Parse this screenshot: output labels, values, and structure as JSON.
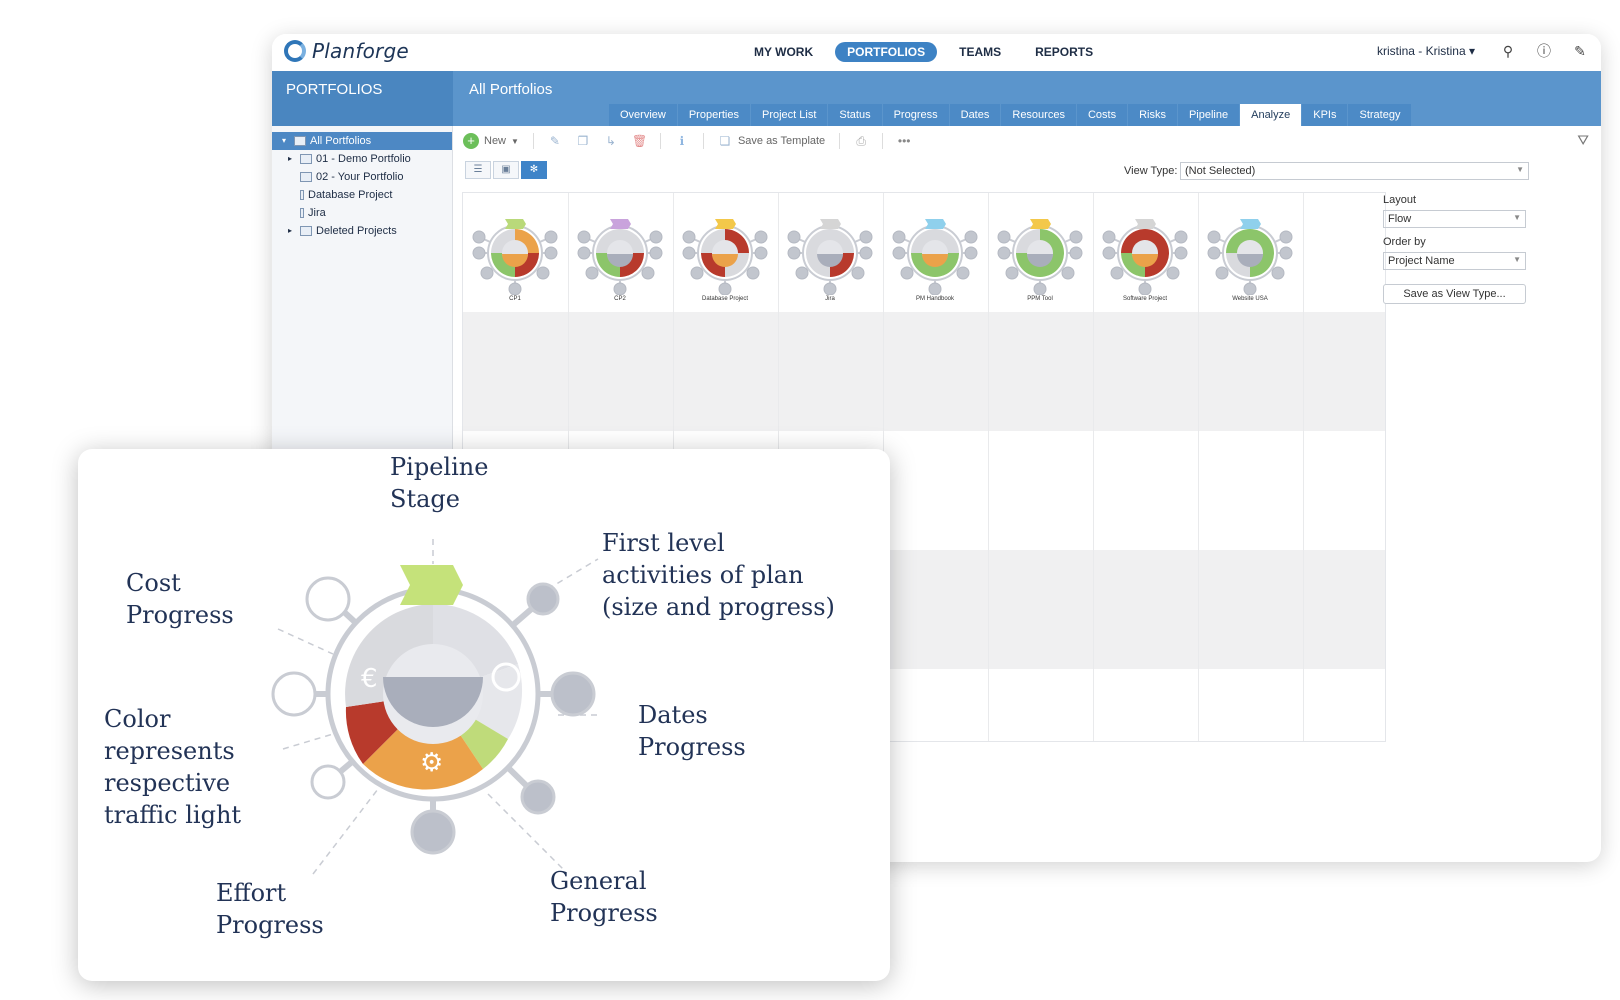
{
  "app": {
    "logo_text": "Planforge",
    "nav": [
      "MY WORK",
      "PORTFOLIOS",
      "TEAMS",
      "REPORTS"
    ],
    "nav_active": "PORTFOLIOS",
    "user": "kristina - Kristina ▾"
  },
  "sidebar": {
    "title": "PORTFOLIOS",
    "items": [
      {
        "label": "All Portfolios"
      },
      {
        "label": "01 - Demo Portfolio"
      },
      {
        "label": "02 - Your Portfolio"
      },
      {
        "label": "Database Project"
      },
      {
        "label": "Jira"
      },
      {
        "label": "Deleted Projects"
      }
    ]
  },
  "main": {
    "title": "All Portfolios",
    "tabs": [
      "Overview",
      "Properties",
      "Project List",
      "Status",
      "Progress",
      "Dates",
      "Resources",
      "Costs",
      "Risks",
      "Pipeline",
      "Analyze",
      "KPIs",
      "Strategy"
    ],
    "active_tab": "Analyze"
  },
  "toolbar": {
    "new_label": "New",
    "save_template_label": "Save as Template"
  },
  "view": {
    "view_type_label": "View Type:",
    "view_type_value": "(Not Selected)"
  },
  "projects": [
    {
      "name": "CP1",
      "flag": "#b9d97a"
    },
    {
      "name": "CP2",
      "flag": "#c9a3dc"
    },
    {
      "name": "Database Project",
      "flag": "#f3c84a"
    },
    {
      "name": "Jira",
      "flag": "#d5d5d5"
    },
    {
      "name": "PM Handbook",
      "flag": "#8fd0ec"
    },
    {
      "name": "PPM Tool",
      "flag": "#f3c84a"
    },
    {
      "name": "Software Project",
      "flag": "#d5d5d5"
    },
    {
      "name": "Website USA",
      "flag": "#8fd0ec"
    }
  ],
  "side_panel": {
    "layout_label": "Layout",
    "layout_value": "Flow",
    "order_label": "Order by",
    "order_value": "Project Name",
    "save_view_label": "Save as View Type..."
  },
  "callout": {
    "pipeline": [
      "Pipeline",
      "Stage"
    ],
    "first_level": [
      "First level",
      "activities of plan",
      "(size and progress)"
    ],
    "cost": [
      "Cost",
      "Progress"
    ],
    "color": [
      "Color",
      "represents",
      "respective",
      "traffic light"
    ],
    "dates": [
      "Dates",
      "Progress"
    ],
    "effort": [
      "Effort",
      "Progress"
    ],
    "general": [
      "General",
      "Progress"
    ]
  },
  "colors": {
    "brand_blue": "#4a86c0",
    "green": "#8cc56a",
    "red": "#b83a2c",
    "orange": "#eba24a",
    "gray": "#c9ccd3"
  }
}
